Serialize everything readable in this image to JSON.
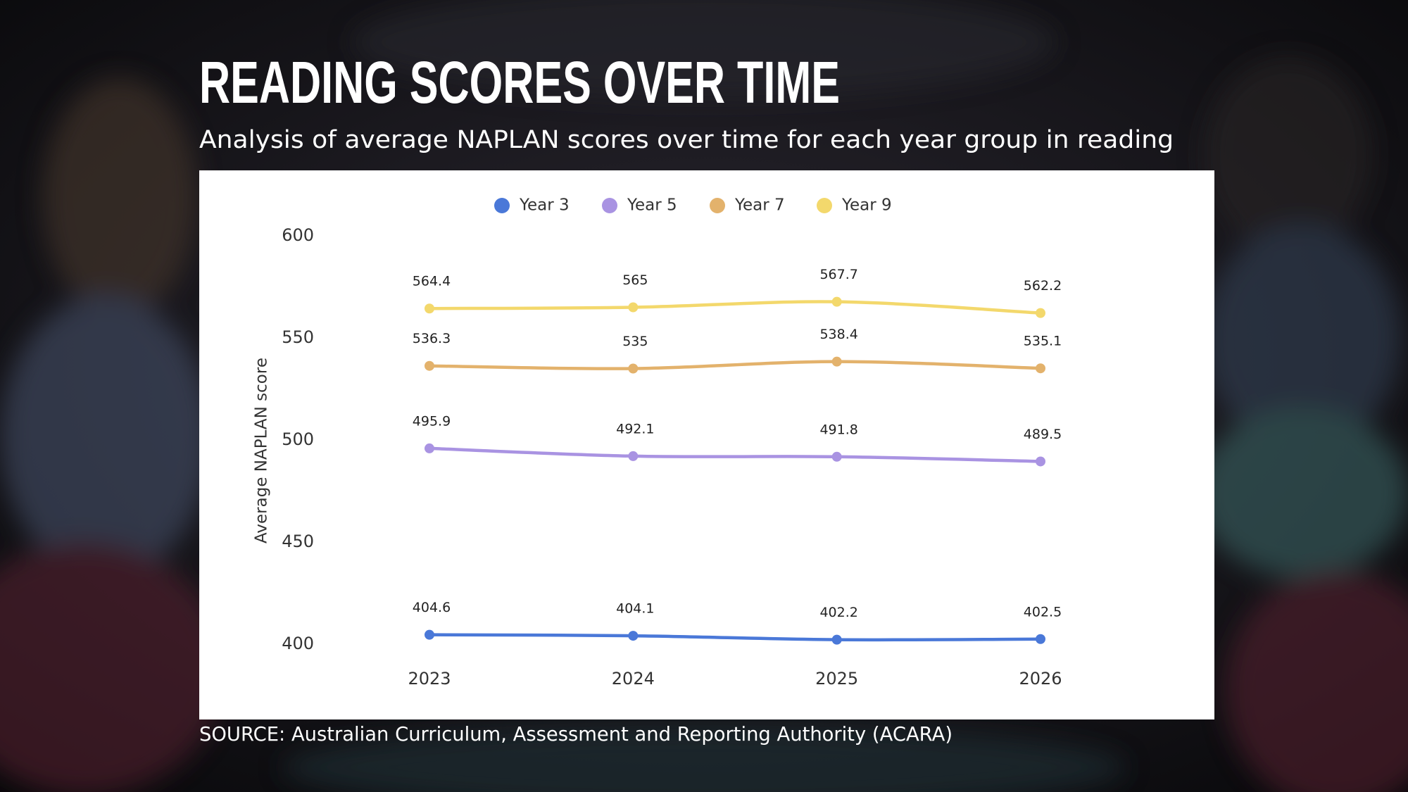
{
  "chart_data": {
    "type": "line",
    "title": "READING SCORES OVER TIME",
    "subtitle": "Analysis of average NAPLAN scores over time for each year group in reading",
    "source": "SOURCE: Australian Curriculum, Assessment and Reporting Authority (ACARA)",
    "y_label": "Average NAPLAN score",
    "categories": [
      "2023",
      "2024",
      "2025",
      "2026"
    ],
    "series": [
      {
        "name": "Year 3",
        "color": "#4a78d8",
        "values": [
          404.6,
          404.1,
          402.2,
          402.5
        ]
      },
      {
        "name": "Year 5",
        "color": "#a993e2",
        "values": [
          495.9,
          492.1,
          491.8,
          489.5
        ]
      },
      {
        "name": "Year 7",
        "color": "#e3b26c",
        "values": [
          536.3,
          535,
          538.4,
          535.1
        ]
      },
      {
        "name": "Year 9",
        "color": "#f3d86c",
        "values": [
          564.4,
          565,
          567.7,
          562.2
        ]
      }
    ],
    "ylim": [
      400,
      600
    ],
    "yticks": [
      400,
      450,
      500,
      550,
      600
    ],
    "grid": false,
    "legend": "top"
  }
}
